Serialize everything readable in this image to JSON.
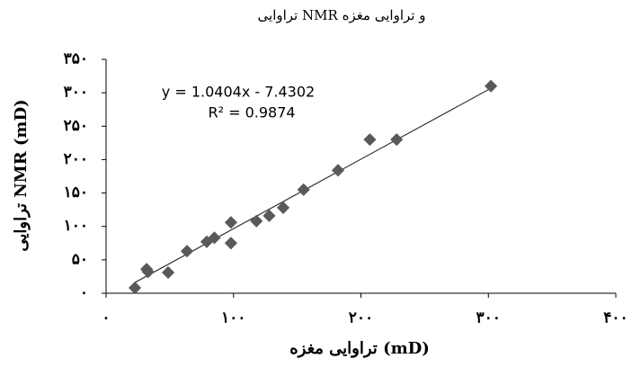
{
  "chart_data": {
    "type": "scatter",
    "title": "تراوایی NMR و تراوایی مغزه",
    "xlabel": "تراوایی مغزه (mD)",
    "ylabel": "تراوایی NMR  (mD)",
    "x": [
      22.6,
      31.8,
      33,
      48.7,
      63.5,
      79,
      85,
      98,
      98,
      118,
      128,
      139,
      155,
      182,
      207,
      228,
      302
    ],
    "series": [
      {
        "name": "NMR",
        "color": "#595959",
        "values": [
          8,
          36,
          32,
          31,
          63,
          77,
          83,
          75,
          106,
          108,
          116,
          128,
          155,
          184,
          230,
          230,
          310
        ]
      }
    ],
    "trendline": {
      "label": "y = 1.0404x - 7.4302",
      "r2_label": "R² = 0.9874",
      "slope": 1.0404,
      "intercept": -7.4302,
      "color": "#333333"
    },
    "xlim": [
      0,
      400
    ],
    "xticks": [
      {
        "value": 0,
        "label": "۰"
      },
      {
        "value": 100,
        "label": "۱۰۰"
      },
      {
        "value": 200,
        "label": "۲۰۰"
      },
      {
        "value": 300,
        "label": "۳۰۰"
      },
      {
        "value": 400,
        "label": "۴۰۰"
      }
    ],
    "ylim": [
      0,
      350
    ],
    "yticks": [
      {
        "value": 0,
        "label": "۰"
      },
      {
        "value": 50,
        "label": "۵۰"
      },
      {
        "value": 100,
        "label": "۱۰۰"
      },
      {
        "value": 150,
        "label": "۱۵۰"
      },
      {
        "value": 200,
        "label": "۲۰۰"
      },
      {
        "value": 250,
        "label": "۲۵۰"
      },
      {
        "value": 300,
        "label": "۳۰۰"
      },
      {
        "value": 350,
        "label": "۳۵۰"
      }
    ],
    "grid": false
  }
}
